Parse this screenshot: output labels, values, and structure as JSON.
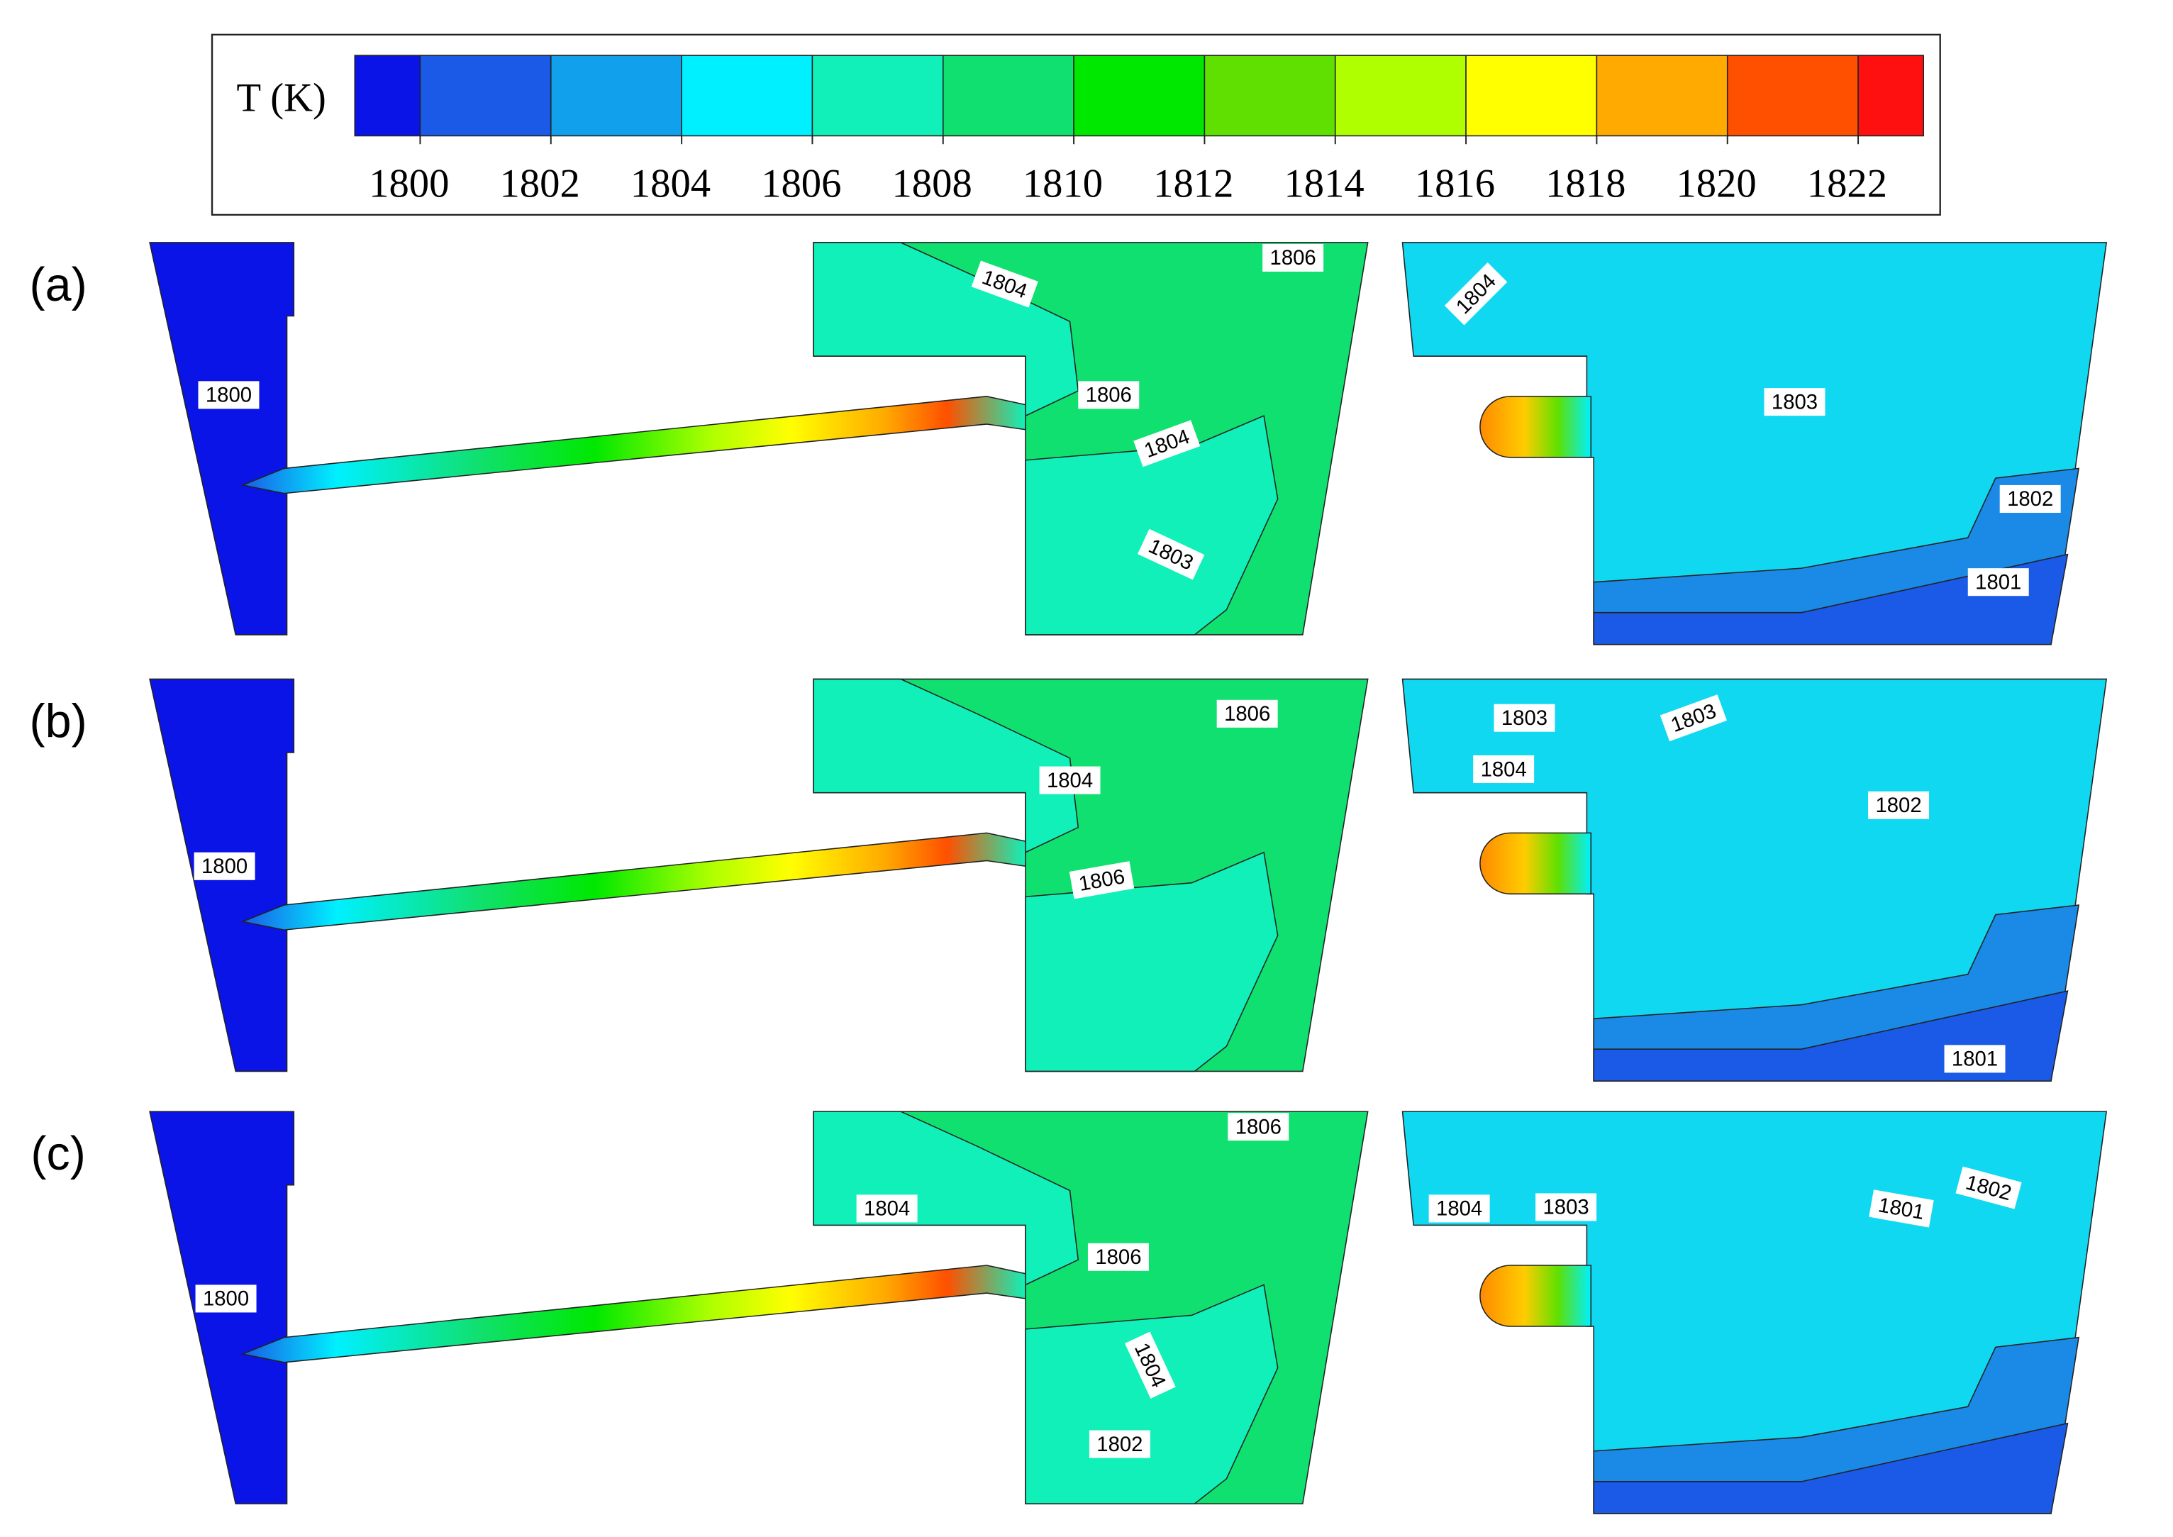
{
  "colorbar": {
    "label": "T (K)",
    "range": [
      1799,
      1823
    ],
    "ticks": [
      1800,
      1802,
      1804,
      1806,
      1808,
      1810,
      1812,
      1814,
      1816,
      1818,
      1820,
      1822
    ],
    "colors": [
      "#0a14e6",
      "#1a5ae6",
      "#10a0ec",
      "#00f0ff",
      "#10f0b8",
      "#10e070",
      "#00e800",
      "#60e000",
      "#b0ff00",
      "#ffff00",
      "#ffaa00",
      "#ff5000",
      "#ff1010"
    ]
  },
  "panels": [
    {
      "label": "(a)",
      "contour_labels": [
        1806,
        1804,
        1800,
        1806,
        1804,
        1803,
        1804,
        1803,
        1802,
        1801
      ]
    },
    {
      "label": "(b)",
      "contour_labels": [
        1806,
        1803,
        1803,
        1804,
        1804,
        1802,
        1800,
        1806,
        1801
      ]
    },
    {
      "label": "(c)",
      "contour_labels": [
        1806,
        1804,
        1804,
        1803,
        1802,
        1801,
        1800,
        1806,
        1804,
        1802
      ]
    }
  ]
}
